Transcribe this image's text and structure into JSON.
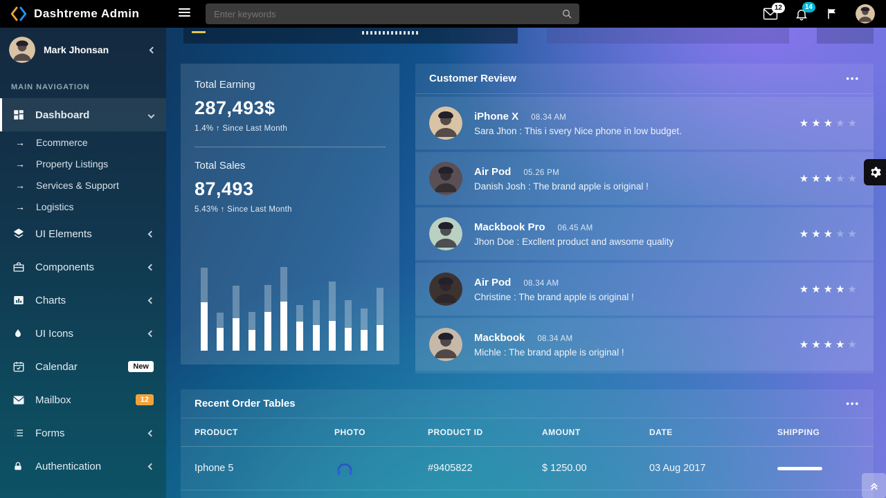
{
  "topbar": {
    "title": "Dashtreme Admin",
    "search": {
      "placeholder": "Enter keywords"
    },
    "mail_badge": "12",
    "bell_badge": "14"
  },
  "sidebar": {
    "user_name": "Mark Jhonsan",
    "section_label": "MAIN NAVIGATION",
    "items": [
      {
        "label": "Dashboard",
        "icon": "dashboard",
        "type": "parent",
        "active": true,
        "chevron": "down"
      },
      {
        "label": "Ecommerce",
        "type": "sub"
      },
      {
        "label": "Property Listings",
        "type": "sub"
      },
      {
        "label": "Services & Support",
        "type": "sub"
      },
      {
        "label": "Logistics",
        "type": "sub"
      },
      {
        "label": "UI Elements",
        "icon": "layers",
        "type": "parent",
        "chevron": "left"
      },
      {
        "label": "Components",
        "icon": "briefcase",
        "type": "parent",
        "chevron": "left"
      },
      {
        "label": "Charts",
        "icon": "chart",
        "type": "parent",
        "chevron": "left"
      },
      {
        "label": "UI Icons",
        "icon": "drop",
        "type": "parent",
        "chevron": "left"
      },
      {
        "label": "Calendar",
        "icon": "calendar",
        "type": "parent",
        "badge": {
          "text": "New",
          "style": "white"
        }
      },
      {
        "label": "Mailbox",
        "icon": "envelope",
        "type": "parent",
        "badge": {
          "text": "12",
          "style": "orange"
        }
      },
      {
        "label": "Forms",
        "icon": "list",
        "type": "parent",
        "chevron": "left"
      },
      {
        "label": "Authentication",
        "icon": "lock",
        "type": "parent",
        "chevron": "left"
      }
    ]
  },
  "stats": {
    "earning_label": "Total Earning",
    "earning_value": "287,493$",
    "earning_change": "1.4% ↑ Since Last Month",
    "sales_label": "Total Sales",
    "sales_value": "87,493",
    "sales_change": "5.43% ↑ Since Last Month"
  },
  "chart_data": {
    "type": "bar",
    "title": "Total Sales sparkline (unlabeled)",
    "xlabel": "",
    "ylabel": "",
    "note": "No axes or labels shown; values are bar heights in px, each bar has a translucent total and a solid white filled portion",
    "series": [
      {
        "name": "total",
        "values": [
          120,
          55,
          94,
          56,
          95,
          121,
          66,
          73,
          100,
          73,
          61,
          91
        ]
      },
      {
        "name": "filled",
        "values": [
          70,
          33,
          47,
          30,
          56,
          71,
          42,
          37,
          43,
          33,
          30,
          37
        ]
      }
    ]
  },
  "reviews": {
    "title": "Customer Review",
    "menu_icon": "•••",
    "max_stars": 5,
    "items": [
      {
        "product": "iPhone X",
        "time": "08.34 AM",
        "text": "Sara Jhon : This i svery Nice phone in low budget.",
        "stars": 3
      },
      {
        "product": "Air Pod",
        "time": "05.26 PM",
        "text": "Danish Josh : The brand apple is original !",
        "stars": 3
      },
      {
        "product": "Mackbook Pro",
        "time": "06.45 AM",
        "text": "Jhon Doe : Excllent product and awsome quality",
        "stars": 3
      },
      {
        "product": "Air Pod",
        "time": "08.34 AM",
        "text": "Christine : The brand apple is original !",
        "stars": 4
      },
      {
        "product": "Mackbook",
        "time": "08.34 AM",
        "text": "Michle : The brand apple is original !",
        "stars": 4
      }
    ]
  },
  "orders": {
    "title": "Recent Order Tables",
    "menu_icon": "•••",
    "columns": [
      "PRODUCT",
      "PHOTO",
      "PRODUCT ID",
      "AMOUNT",
      "DATE",
      "SHIPPING"
    ],
    "rows": [
      {
        "product": "Iphone 5",
        "photo": "headphones-icon",
        "product_id": "#9405822",
        "amount": "$ 1250.00",
        "date": "03 Aug 2017",
        "shipping_progress": 100
      }
    ]
  },
  "colors": {
    "topbar": "#000000",
    "accent_orange": "#f0a33c",
    "accent_cyan": "#00b9d6",
    "logo_orange": "#f0a33c",
    "logo_blue": "#2196f3"
  }
}
